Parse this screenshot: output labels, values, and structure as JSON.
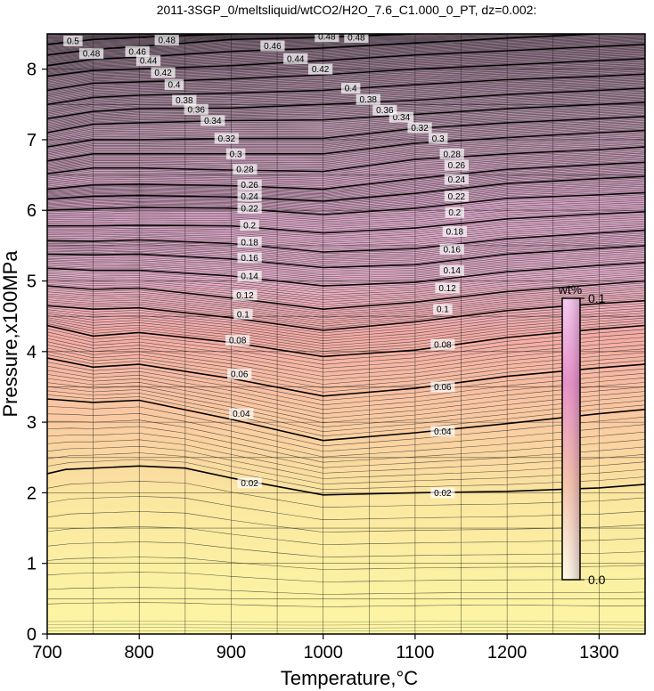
{
  "chart_data": {
    "type": "heatmap",
    "title": "2011-3SGP_0/meltsliquid/wtCO2/H2O_7.6_C1.000_0_PT, dz=0.002:",
    "xlabel": "Temperature,°C",
    "ylabel": "Pressure,x100MPa",
    "xlim": [
      700,
      1350
    ],
    "ylim": [
      0,
      8.5
    ],
    "x_ticks": [
      "700",
      "800",
      "900",
      "1000",
      "1100",
      "1200",
      "1300"
    ],
    "y_ticks": [
      "0",
      "1",
      "2",
      "3",
      "4",
      "5",
      "6",
      "7",
      "8"
    ],
    "grid": true,
    "contour_interval": 0.002,
    "labeled_contours": [
      {
        "level": 0.02,
        "label": "0.02",
        "points": [
          [
            700,
            2.27
          ],
          [
            720,
            2.33
          ],
          [
            800,
            2.38
          ],
          [
            850,
            2.35
          ],
          [
            900,
            2.21
          ],
          [
            1000,
            1.97
          ],
          [
            1100,
            2.0
          ],
          [
            1200,
            2.02
          ],
          [
            1300,
            2.07
          ],
          [
            1350,
            2.12
          ]
        ],
        "labels_at": [
          [
            920,
            2.14
          ],
          [
            1130,
            2.0
          ]
        ]
      },
      {
        "level": 0.04,
        "label": "0.04",
        "points": [
          [
            700,
            3.33
          ],
          [
            750,
            3.28
          ],
          [
            800,
            3.31
          ],
          [
            900,
            3.04
          ],
          [
            1000,
            2.74
          ],
          [
            1100,
            2.85
          ],
          [
            1200,
            2.98
          ],
          [
            1300,
            3.12
          ],
          [
            1350,
            3.18
          ]
        ],
        "labels_at": [
          [
            911,
            3.12
          ],
          [
            1130,
            2.87
          ]
        ]
      },
      {
        "level": 0.06,
        "label": "0.06",
        "points": [
          [
            700,
            3.91
          ],
          [
            750,
            3.78
          ],
          [
            800,
            3.82
          ],
          [
            900,
            3.62
          ],
          [
            1000,
            3.37
          ],
          [
            1100,
            3.48
          ],
          [
            1200,
            3.65
          ],
          [
            1300,
            3.77
          ],
          [
            1350,
            3.82
          ]
        ],
        "labels_at": [
          [
            909,
            3.68
          ],
          [
            1130,
            3.5
          ]
        ]
      },
      {
        "level": 0.08,
        "label": "0.08",
        "points": [
          [
            700,
            4.37
          ],
          [
            750,
            4.22
          ],
          [
            800,
            4.27
          ],
          [
            900,
            4.13
          ],
          [
            1000,
            3.93
          ],
          [
            1100,
            4.02
          ],
          [
            1200,
            4.2
          ],
          [
            1300,
            4.32
          ],
          [
            1350,
            4.37
          ]
        ],
        "labels_at": [
          [
            907,
            4.16
          ],
          [
            1130,
            4.1
          ]
        ]
      },
      {
        "level": 0.1,
        "label": "0.1",
        "points": [
          [
            700,
            4.65
          ],
          [
            750,
            4.6
          ],
          [
            800,
            4.62
          ],
          [
            900,
            4.48
          ],
          [
            1000,
            4.3
          ],
          [
            1100,
            4.42
          ],
          [
            1200,
            4.58
          ],
          [
            1300,
            4.68
          ],
          [
            1350,
            4.72
          ]
        ],
        "labels_at": [
          [
            913,
            4.53
          ],
          [
            1130,
            4.6
          ]
        ]
      },
      {
        "level": 0.12,
        "label": "0.12",
        "points": [
          [
            700,
            4.93
          ],
          [
            750,
            4.88
          ],
          [
            800,
            4.9
          ],
          [
            900,
            4.76
          ],
          [
            1000,
            4.6
          ],
          [
            1100,
            4.7
          ],
          [
            1200,
            4.85
          ],
          [
            1300,
            4.95
          ],
          [
            1350,
            5.0
          ]
        ],
        "labels_at": [
          [
            915,
            4.8
          ],
          [
            1135,
            4.9
          ]
        ]
      },
      {
        "level": 0.14,
        "label": "0.14",
        "points": [
          [
            700,
            5.18
          ],
          [
            750,
            5.15
          ],
          [
            800,
            5.15
          ],
          [
            900,
            5.07
          ],
          [
            1000,
            4.93
          ],
          [
            1100,
            4.98
          ],
          [
            1200,
            5.13
          ],
          [
            1300,
            5.22
          ],
          [
            1350,
            5.26
          ]
        ],
        "labels_at": [
          [
            920,
            5.07
          ],
          [
            1140,
            5.15
          ]
        ]
      },
      {
        "level": 0.16,
        "label": "0.16",
        "points": [
          [
            700,
            5.38
          ],
          [
            750,
            5.37
          ],
          [
            800,
            5.38
          ],
          [
            900,
            5.31
          ],
          [
            1000,
            5.19
          ],
          [
            1100,
            5.23
          ],
          [
            1200,
            5.38
          ],
          [
            1300,
            5.46
          ],
          [
            1350,
            5.5
          ]
        ],
        "labels_at": [
          [
            920,
            5.33
          ],
          [
            1140,
            5.45
          ]
        ]
      },
      {
        "level": 0.18,
        "label": "0.18",
        "points": [
          [
            700,
            5.57
          ],
          [
            750,
            5.56
          ],
          [
            800,
            5.58
          ],
          [
            900,
            5.53
          ],
          [
            1000,
            5.41
          ],
          [
            1100,
            5.46
          ],
          [
            1200,
            5.6
          ],
          [
            1300,
            5.68
          ],
          [
            1350,
            5.72
          ]
        ],
        "labels_at": [
          [
            920,
            5.55
          ],
          [
            1143,
            5.7
          ]
        ]
      },
      {
        "level": 0.2,
        "label": "0.2",
        "points": [
          [
            700,
            5.78
          ],
          [
            750,
            5.78
          ],
          [
            800,
            5.79
          ],
          [
            900,
            5.78
          ],
          [
            1000,
            5.68
          ],
          [
            1100,
            5.75
          ],
          [
            1200,
            5.88
          ],
          [
            1300,
            5.95
          ],
          [
            1350,
            5.98
          ]
        ],
        "labels_at": [
          [
            920,
            5.79
          ],
          [
            1143,
            5.97
          ]
        ]
      },
      {
        "level": 0.22,
        "label": "0.22",
        "points": [
          [
            700,
            6.0
          ],
          [
            750,
            6.02
          ],
          [
            800,
            6.04
          ],
          [
            900,
            6.03
          ],
          [
            1000,
            5.94
          ],
          [
            1100,
            6.03
          ],
          [
            1200,
            6.17
          ],
          [
            1300,
            6.22
          ],
          [
            1350,
            6.25
          ]
        ],
        "labels_at": [
          [
            920,
            6.03
          ],
          [
            1145,
            6.2
          ]
        ]
      },
      {
        "level": 0.24,
        "label": "0.24",
        "points": [
          [
            700,
            6.16
          ],
          [
            750,
            6.2
          ],
          [
            800,
            6.21
          ],
          [
            900,
            6.19
          ],
          [
            1000,
            6.13
          ],
          [
            1100,
            6.24
          ],
          [
            1200,
            6.38
          ],
          [
            1300,
            6.45
          ],
          [
            1350,
            6.48
          ]
        ],
        "labels_at": [
          [
            920,
            6.2
          ],
          [
            1145,
            6.44
          ]
        ]
      },
      {
        "level": 0.26,
        "label": "0.26",
        "points": [
          [
            700,
            6.3
          ],
          [
            750,
            6.36
          ],
          [
            800,
            6.37
          ],
          [
            900,
            6.35
          ],
          [
            1000,
            6.3
          ],
          [
            1100,
            6.45
          ],
          [
            1200,
            6.58
          ],
          [
            1300,
            6.65
          ],
          [
            1350,
            6.68
          ]
        ],
        "labels_at": [
          [
            920,
            6.36
          ],
          [
            1145,
            6.64
          ]
        ]
      },
      {
        "level": 0.28,
        "label": "0.28",
        "points": [
          [
            700,
            6.52
          ],
          [
            750,
            6.6
          ],
          [
            800,
            6.6
          ],
          [
            900,
            6.57
          ],
          [
            1000,
            6.55
          ],
          [
            1100,
            6.72
          ],
          [
            1200,
            6.8
          ],
          [
            1300,
            6.86
          ],
          [
            1350,
            6.9
          ]
        ],
        "labels_at": [
          [
            915,
            6.58
          ],
          [
            1140,
            6.8
          ]
        ]
      },
      {
        "level": 0.3,
        "label": "0.3",
        "points": [
          [
            700,
            6.7
          ],
          [
            750,
            6.8
          ],
          [
            800,
            6.8
          ],
          [
            900,
            6.8
          ],
          [
            1000,
            6.8
          ],
          [
            1100,
            6.95
          ],
          [
            1200,
            7.03
          ],
          [
            1300,
            7.1
          ],
          [
            1350,
            7.13
          ]
        ],
        "labels_at": [
          [
            905,
            6.8
          ],
          [
            1125,
            7.02
          ]
        ]
      },
      {
        "level": 0.32,
        "label": "0.32",
        "points": [
          [
            700,
            6.9
          ],
          [
            750,
            7.0
          ],
          [
            800,
            7.0
          ],
          [
            900,
            7.02
          ],
          [
            1000,
            7.02
          ],
          [
            1100,
            7.16
          ],
          [
            1200,
            7.24
          ],
          [
            1300,
            7.3
          ],
          [
            1350,
            7.33
          ]
        ],
        "labels_at": [
          [
            895,
            7.02
          ],
          [
            1105,
            7.17
          ]
        ]
      },
      {
        "level": 0.34,
        "label": "0.34",
        "points": [
          [
            700,
            7.1
          ],
          [
            750,
            7.22
          ],
          [
            800,
            7.24
          ],
          [
            900,
            7.27
          ],
          [
            1000,
            7.28
          ],
          [
            1100,
            7.36
          ],
          [
            1200,
            7.44
          ],
          [
            1300,
            7.5
          ],
          [
            1350,
            7.53
          ]
        ],
        "labels_at": [
          [
            880,
            7.27
          ],
          [
            1085,
            7.32
          ]
        ]
      },
      {
        "level": 0.36,
        "label": "0.36",
        "points": [
          [
            700,
            7.3
          ],
          [
            750,
            7.4
          ],
          [
            800,
            7.44
          ],
          [
            900,
            7.45
          ],
          [
            1000,
            7.5
          ],
          [
            1100,
            7.56
          ],
          [
            1200,
            7.64
          ],
          [
            1300,
            7.7
          ],
          [
            1350,
            7.73
          ]
        ],
        "labels_at": [
          [
            862,
            7.43
          ],
          [
            1067,
            7.42
          ]
        ]
      },
      {
        "level": 0.38,
        "label": "0.38",
        "points": [
          [
            700,
            7.5
          ],
          [
            750,
            7.6
          ],
          [
            800,
            7.63
          ],
          [
            900,
            7.66
          ],
          [
            1000,
            7.7
          ],
          [
            1100,
            7.78
          ],
          [
            1200,
            7.85
          ],
          [
            1300,
            7.9
          ],
          [
            1350,
            7.93
          ]
        ],
        "labels_at": [
          [
            849,
            7.56
          ],
          [
            1049,
            7.57
          ]
        ]
      },
      {
        "level": 0.4,
        "label": "0.4",
        "points": [
          [
            700,
            7.7
          ],
          [
            750,
            7.8
          ],
          [
            800,
            7.82
          ],
          [
            900,
            7.86
          ],
          [
            1000,
            7.92
          ],
          [
            1100,
            8.0
          ],
          [
            1200,
            8.06
          ],
          [
            1300,
            8.12
          ],
          [
            1350,
            8.15
          ]
        ],
        "labels_at": [
          [
            838,
            7.78
          ],
          [
            1030,
            7.73
          ]
        ]
      },
      {
        "level": 0.42,
        "label": "0.42",
        "points": [
          [
            700,
            7.9
          ],
          [
            750,
            7.98
          ],
          [
            800,
            8.0
          ],
          [
            900,
            8.05
          ],
          [
            1000,
            8.12
          ],
          [
            1100,
            8.2
          ],
          [
            1200,
            8.26
          ],
          [
            1300,
            8.32
          ],
          [
            1350,
            8.35
          ]
        ],
        "labels_at": [
          [
            826,
            7.95
          ],
          [
            997,
            8.0
          ]
        ]
      },
      {
        "level": 0.44,
        "label": "0.44",
        "points": [
          [
            700,
            8.05
          ],
          [
            750,
            8.14
          ],
          [
            800,
            8.17
          ],
          [
            900,
            8.25
          ],
          [
            1000,
            8.3
          ],
          [
            1100,
            8.37
          ],
          [
            1200,
            8.44
          ],
          [
            1300,
            8.5
          ],
          [
            1350,
            8.52
          ]
        ],
        "labels_at": [
          [
            810,
            8.12
          ],
          [
            970,
            8.15
          ]
        ]
      },
      {
        "level": 0.46,
        "label": "0.46",
        "points": [
          [
            700,
            8.2
          ],
          [
            750,
            8.28
          ],
          [
            800,
            8.32
          ],
          [
            900,
            8.42
          ],
          [
            1000,
            8.45
          ],
          [
            1100,
            8.5
          ]
        ],
        "labels_at": [
          [
            798,
            8.25
          ],
          [
            945,
            8.33
          ]
        ]
      },
      {
        "level": 0.48,
        "label": "0.48",
        "points": [
          [
            700,
            8.35
          ],
          [
            750,
            8.42
          ],
          [
            800,
            8.45
          ],
          [
            900,
            8.5
          ]
        ],
        "labels_at": [
          [
            830,
            8.41
          ],
          [
            1004,
            8.46
          ],
          [
            1036,
            8.45
          ],
          [
            748,
            8.22
          ]
        ]
      },
      {
        "level": 0.5,
        "label": "0.5",
        "points": [
          [
            700,
            8.5
          ],
          [
            720,
            8.5
          ]
        ],
        "labels_at": [
          [
            728,
            8.4
          ]
        ]
      }
    ],
    "colorbar": {
      "label": "wt%",
      "min_label": "0.0",
      "max_label": "0.1",
      "min": 0.0,
      "max": 0.1,
      "colors": [
        "#fffce0",
        "#ffc8a8",
        "#f0c0e0"
      ]
    }
  }
}
